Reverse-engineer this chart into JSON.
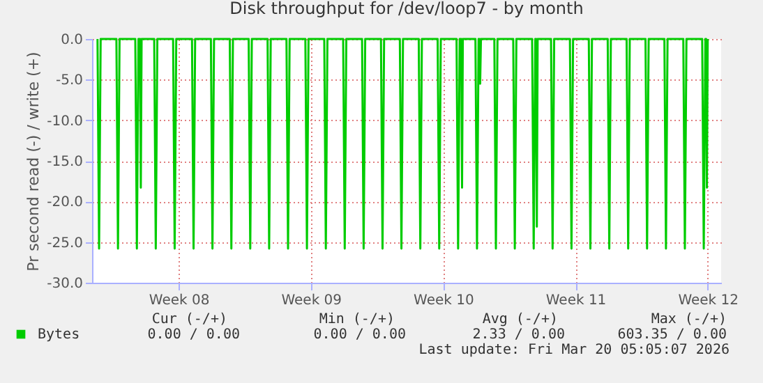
{
  "chart_data": {
    "type": "line",
    "title": "Disk throughput for /dev/loop7 - by month",
    "ylabel": "Pr second read (-) / write (+)",
    "x": [
      "2026-02-15T05:00",
      "2026-02-15T07:00",
      "2026-02-15T09:00",
      "2026-02-16T05:00",
      "2026-02-16T07:00",
      "2026-02-16T09:00",
      "2026-02-17T05:00",
      "2026-02-17T07:00",
      "2026-02-17T09:00",
      "2026-02-17T11:00",
      "2026-02-17T12:00",
      "2026-02-17T13:00",
      "2026-02-18T05:00",
      "2026-02-18T07:00",
      "2026-02-18T09:00",
      "2026-02-19T05:00",
      "2026-02-19T07:00",
      "2026-02-19T09:00",
      "2026-02-20T05:00",
      "2026-02-20T07:00",
      "2026-02-20T09:00",
      "2026-02-21T05:00",
      "2026-02-21T07:00",
      "2026-02-21T09:00",
      "2026-02-22T05:00",
      "2026-02-22T07:00",
      "2026-02-22T09:00",
      "2026-02-23T05:00",
      "2026-02-23T07:00",
      "2026-02-23T09:00",
      "2026-02-24T05:00",
      "2026-02-24T07:00",
      "2026-02-24T09:00",
      "2026-02-25T05:00",
      "2026-02-25T07:00",
      "2026-02-25T09:00",
      "2026-02-26T05:00",
      "2026-02-26T07:00",
      "2026-02-26T09:00",
      "2026-02-27T05:00",
      "2026-02-27T07:00",
      "2026-02-27T09:00",
      "2026-02-28T05:00",
      "2026-02-28T07:00",
      "2026-02-28T09:00",
      "2026-03-01T05:00",
      "2026-03-01T07:00",
      "2026-03-01T09:00",
      "2026-03-02T05:00",
      "2026-03-02T07:00",
      "2026-03-02T09:00",
      "2026-03-03T05:00",
      "2026-03-03T07:00",
      "2026-03-03T09:00",
      "2026-03-04T05:00",
      "2026-03-04T07:00",
      "2026-03-04T09:00",
      "2026-03-05T05:00",
      "2026-03-05T07:00",
      "2026-03-05T09:00",
      "2026-03-06T05:00",
      "2026-03-06T07:00",
      "2026-03-06T09:00",
      "2026-03-06T11:00",
      "2026-03-06T12:00",
      "2026-03-06T13:00",
      "2026-03-07T05:00",
      "2026-03-07T07:00",
      "2026-03-07T09:00",
      "2026-03-07T10:00",
      "2026-03-07T11:00",
      "2026-03-07T12:00",
      "2026-03-08T05:00",
      "2026-03-08T07:00",
      "2026-03-08T09:00",
      "2026-03-09T05:00",
      "2026-03-09T07:00",
      "2026-03-09T09:00",
      "2026-03-10T05:00",
      "2026-03-10T07:00",
      "2026-03-10T09:00",
      "2026-03-10T10:00",
      "2026-03-10T11:00",
      "2026-03-10T12:00",
      "2026-03-11T05:00",
      "2026-03-11T07:00",
      "2026-03-11T09:00",
      "2026-03-12T05:00",
      "2026-03-12T07:00",
      "2026-03-12T09:00",
      "2026-03-13T05:00",
      "2026-03-13T07:00",
      "2026-03-13T09:00",
      "2026-03-14T05:00",
      "2026-03-14T07:00",
      "2026-03-14T09:00",
      "2026-03-15T05:00",
      "2026-03-15T07:00",
      "2026-03-15T09:00",
      "2026-03-16T05:00",
      "2026-03-16T07:00",
      "2026-03-16T09:00",
      "2026-03-17T05:00",
      "2026-03-17T07:00",
      "2026-03-17T09:00",
      "2026-03-18T05:00",
      "2026-03-18T07:00",
      "2026-03-18T09:00",
      "2026-03-19T05:00",
      "2026-03-19T07:00",
      "2026-03-19T09:00",
      "2026-03-19T10:00",
      "2026-03-19T11:00",
      "2026-03-19T12:00"
    ],
    "series": [
      {
        "name": "Bytes",
        "color": "#00cc00",
        "values": [
          0,
          -25.8,
          0,
          0,
          -25.8,
          0,
          0,
          -25.8,
          0,
          0,
          -18.3,
          0,
          0,
          -25.8,
          0,
          0,
          -25.8,
          0,
          0,
          -25.8,
          0,
          0,
          -25.8,
          0,
          0,
          -25.8,
          0,
          0,
          -25.8,
          0,
          0,
          -25.8,
          0,
          0,
          -25.8,
          0,
          0,
          -25.8,
          0,
          0,
          -25.8,
          0,
          0,
          -25.8,
          0,
          0,
          -25.8,
          0,
          0,
          -25.8,
          0,
          0,
          -25.8,
          0,
          0,
          -25.8,
          0,
          0,
          -25.8,
          0,
          0,
          -25.8,
          0,
          0,
          -18.3,
          0,
          0,
          -25.8,
          0,
          0,
          -5.5,
          0,
          0,
          -25.8,
          0,
          0,
          -25.8,
          0,
          0,
          -25.8,
          0,
          0,
          -23.1,
          0,
          0,
          -25.8,
          0,
          0,
          -25.8,
          0,
          0,
          -25.8,
          0,
          0,
          -25.8,
          0,
          0,
          -25.8,
          0,
          0,
          -25.8,
          0,
          0,
          -25.8,
          0,
          0,
          -25.8,
          0,
          0,
          -25.8,
          0,
          0,
          -18.3,
          0
        ]
      }
    ],
    "xlim": [
      "2026-02-14T22:05",
      "2026-03-20T05:05"
    ],
    "xticks": [
      {
        "value": "2026-02-19T12:00",
        "label": "Week 08"
      },
      {
        "value": "2026-02-26T12:00",
        "label": "Week 09"
      },
      {
        "value": "2026-03-05T12:00",
        "label": "Week 10"
      },
      {
        "value": "2026-03-12T12:00",
        "label": "Week 11"
      },
      {
        "value": "2026-03-19T12:00",
        "label": "Week 12"
      }
    ],
    "ylim": [
      -30,
      0
    ],
    "yticks": [
      {
        "value": -30,
        "label": "-30.0"
      },
      {
        "value": -25,
        "label": "-25.0"
      },
      {
        "value": -20,
        "label": "-20.0"
      },
      {
        "value": -15,
        "label": "-15.0"
      },
      {
        "value": -10,
        "label": "-10.0"
      },
      {
        "value": -5,
        "label": "-5.0"
      },
      {
        "value": 0,
        "label": "0.0"
      }
    ],
    "grid": true,
    "legend": "bottom",
    "annotations": [
      "Cur (-/+)",
      "Min (-/+)",
      "Avg (-/+)",
      "Max (-/+)",
      "0.00 /    0.00",
      "0.00 /    0.00",
      "2.33 /    0.00",
      "603.35 /    0.00",
      "Last update: Fri Mar 20 05:05:07 2026"
    ]
  }
}
